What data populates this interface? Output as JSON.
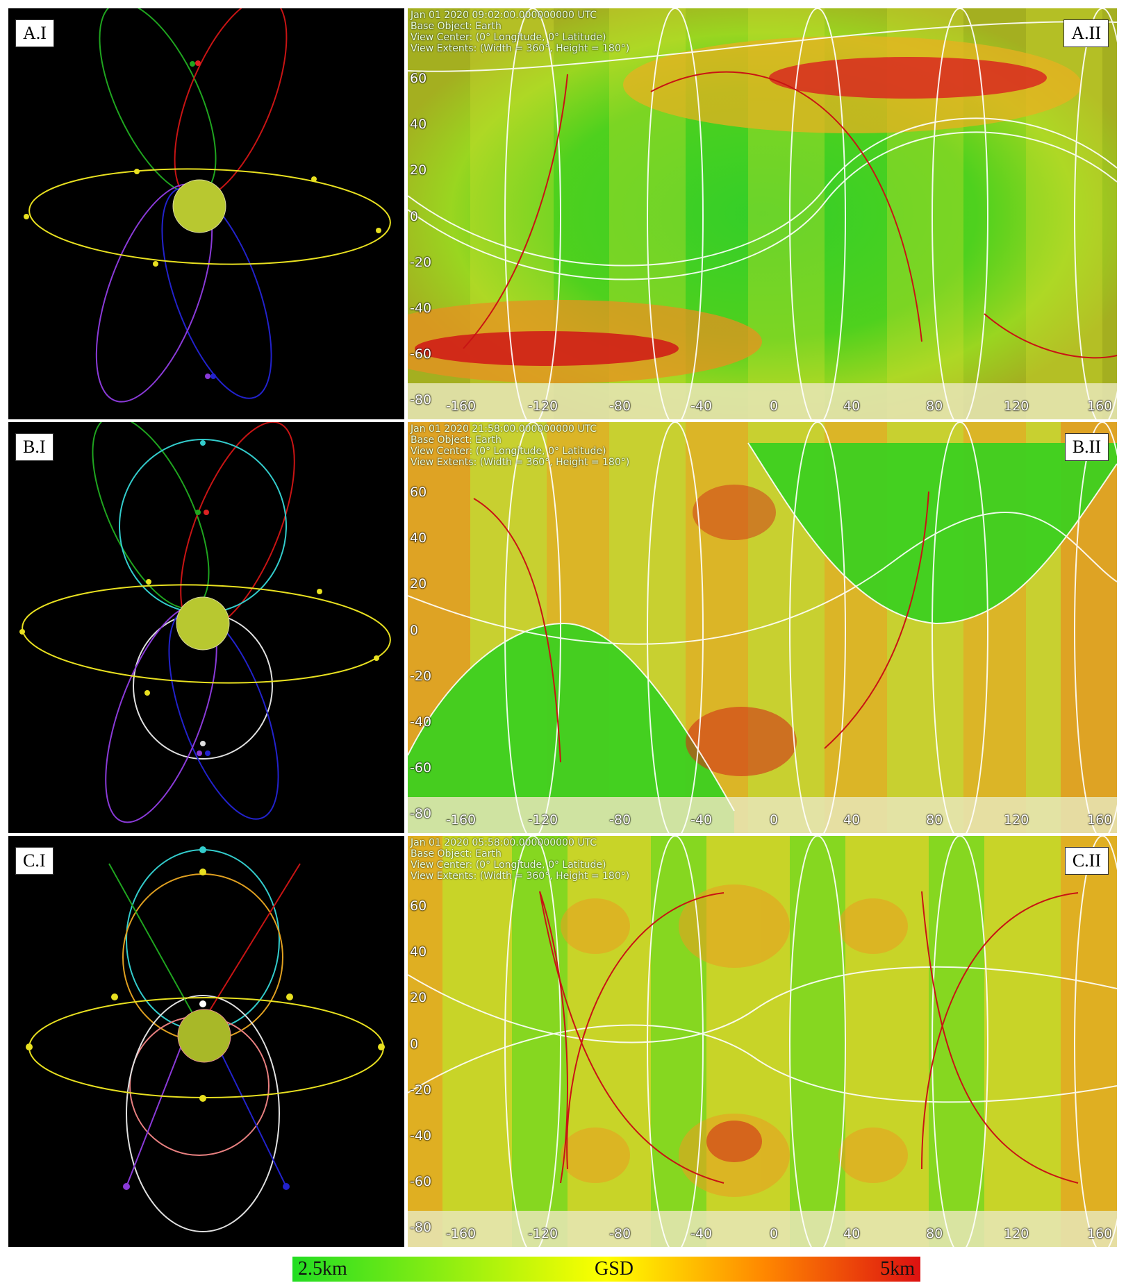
{
  "panels": [
    {
      "left_label": "A.I",
      "right_label": "A.II",
      "info": [
        "Jan 01 2020 09:02:00.000000000 UTC",
        "Base Object: Earth",
        "View Center: (0° Longitude, 0° Latitude)",
        "View Extents: (Width = 360°, Height = 180°)"
      ]
    },
    {
      "left_label": "B.I",
      "right_label": "B.II",
      "info": [
        "Jan 01 2020 21:58:00.000000000 UTC",
        "Base Object: Earth",
        "View Center: (0° Longitude, 0° Latitude)",
        "View Extents: (Width = 360°, Height = 180°)"
      ]
    },
    {
      "left_label": "C.I",
      "right_label": "C.II",
      "info": [
        "Jan 01 2020 05:58:00.000000000 UTC",
        "Base Object: Earth",
        "View Center: (0° Longitude, 0° Latitude)",
        "View Extents: (Width = 360°, Height = 180°)"
      ]
    }
  ],
  "axis": {
    "y_ticks": [
      "60",
      "40",
      "20",
      "0",
      "-20",
      "-40",
      "-60",
      "-80"
    ],
    "x_ticks": [
      "-160",
      "-120",
      "-80",
      "-40",
      "0",
      "40",
      "80",
      "120",
      "160"
    ]
  },
  "legend": {
    "min_label": "2.5km",
    "title": "GSD",
    "max_label": "5km",
    "colors": [
      "#22dd22",
      "#ffff00",
      "#ff8800",
      "#dd1111"
    ]
  },
  "orbit_colors": {
    "yellow": "#e8e020",
    "green": "#1fa51f",
    "red": "#c81414",
    "blue": "#2222cc",
    "purple": "#8a3ad8",
    "cyan": "#33cccc",
    "white": "#e0e0e0",
    "orange": "#e0a020",
    "pink": "#e88080"
  }
}
